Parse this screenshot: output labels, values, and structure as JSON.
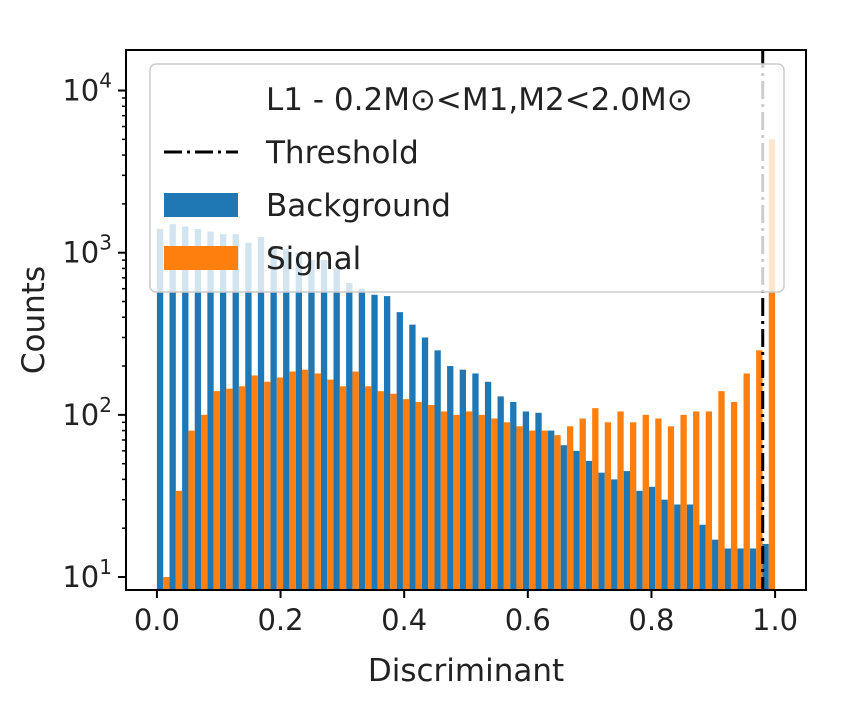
{
  "chart_data": {
    "type": "bar",
    "title": "",
    "xlabel": "Discriminant",
    "ylabel": "Counts",
    "xlim": [
      -0.05,
      1.05
    ],
    "ylim_log10": [
      0.92,
      4.25
    ],
    "yscale": "log",
    "grid": false,
    "legend_position": "top-right",
    "legend_title": "L1 - 0.2M⊙<M1,M2<2.0M⊙",
    "legend": [
      "Threshold",
      "Background",
      "Signal"
    ],
    "x_ticks": [
      "0.0",
      "0.2",
      "0.4",
      "0.6",
      "0.8",
      "1.0"
    ],
    "x_tick_values": [
      0.0,
      0.2,
      0.4,
      0.6,
      0.8,
      1.0
    ],
    "y_ticks": [
      "10",
      "10",
      "10",
      "10"
    ],
    "y_tick_exponents": [
      "1",
      "2",
      "3",
      "4"
    ],
    "y_tick_values": [
      10,
      100,
      1000,
      10000
    ],
    "threshold": 0.98,
    "bins_left": [
      0.0,
      0.0204,
      0.0408,
      0.0612,
      0.0816,
      0.102,
      0.1224,
      0.1429,
      0.1633,
      0.1837,
      0.2041,
      0.2245,
      0.2449,
      0.2653,
      0.2857,
      0.3061,
      0.3265,
      0.3469,
      0.3673,
      0.3878,
      0.4082,
      0.4286,
      0.449,
      0.4694,
      0.4898,
      0.5102,
      0.5306,
      0.551,
      0.5714,
      0.5918,
      0.6122,
      0.6327,
      0.6531,
      0.6735,
      0.6939,
      0.7143,
      0.7347,
      0.7551,
      0.7755,
      0.7959,
      0.8163,
      0.8367,
      0.8571,
      0.8776,
      0.898,
      0.9184,
      0.9388,
      0.9592,
      0.9796
    ],
    "bin_width": 0.0204,
    "series": [
      {
        "name": "Background",
        "color": "#1f77b4",
        "values": [
          1400,
          1500,
          1450,
          1400,
          1350,
          1300,
          1300,
          1150,
          1250,
          1100,
          1050,
          1000,
          900,
          900,
          800,
          650,
          600,
          550,
          540,
          430,
          360,
          300,
          250,
          200,
          190,
          180,
          160,
          130,
          120,
          105,
          103,
          80,
          65,
          60,
          52,
          44,
          40,
          45,
          34,
          36,
          30,
          28,
          28,
          21,
          17,
          15,
          15,
          15,
          16
        ]
      },
      {
        "name": "Signal",
        "color": "#ff7f0e",
        "values": [
          10,
          34,
          80,
          100,
          140,
          145,
          150,
          175,
          160,
          170,
          185,
          190,
          180,
          165,
          150,
          185,
          150,
          140,
          135,
          125,
          120,
          115,
          105,
          100,
          105,
          100,
          95,
          90,
          85,
          80,
          80,
          75,
          85,
          95,
          110,
          90,
          105,
          90,
          100,
          95,
          85,
          100,
          105,
          105,
          140,
          120,
          180,
          250,
          5000
        ]
      }
    ]
  },
  "colors": {
    "background_series": "#1f77b4",
    "signal_series": "#ff7f0e",
    "threshold_line": "#000000"
  }
}
